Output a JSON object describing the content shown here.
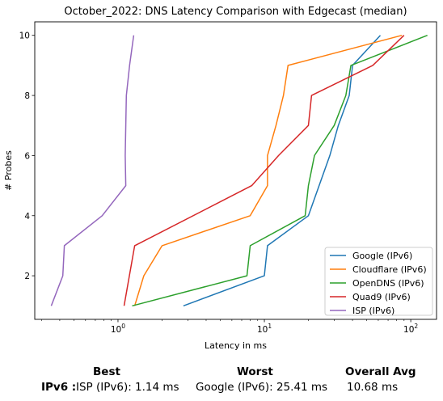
{
  "chart_data": {
    "type": "line",
    "title": "October_2022: DNS Latency Comparison with Edgecast (median)",
    "xlabel": "Latency in ms",
    "ylabel": "# Probes",
    "xscale": "log",
    "xlim": [
      0.27,
      150
    ],
    "ylim": [
      0.55,
      10.45
    ],
    "x_ticks": [
      {
        "value": 1,
        "base": "10",
        "exp": "0"
      },
      {
        "value": 10,
        "base": "10",
        "exp": "1"
      },
      {
        "value": 100,
        "base": "10",
        "exp": "2"
      }
    ],
    "y_ticks": [
      2,
      4,
      6,
      8,
      10
    ],
    "legend_position": "lower right",
    "series": [
      {
        "name": "Google (IPv6)",
        "color": "#1f77b4",
        "points": [
          [
            2.8,
            1
          ],
          [
            10,
            2
          ],
          [
            10.5,
            3
          ],
          [
            20,
            4
          ],
          [
            28,
            6
          ],
          [
            32,
            7
          ],
          [
            38,
            8
          ],
          [
            40,
            9
          ],
          [
            62,
            10
          ]
        ]
      },
      {
        "name": "Cloudflare (IPv6)",
        "color": "#ff7f0e",
        "points": [
          [
            1.3,
            1
          ],
          [
            1.5,
            2
          ],
          [
            2.0,
            3
          ],
          [
            8.0,
            4
          ],
          [
            10.5,
            5
          ],
          [
            10.5,
            6
          ],
          [
            12,
            7
          ],
          [
            13.5,
            8
          ],
          [
            14.5,
            9
          ],
          [
            87,
            10
          ]
        ]
      },
      {
        "name": "OpenDNS (IPv6)",
        "color": "#2ca02c",
        "points": [
          [
            1.25,
            1
          ],
          [
            7.6,
            2
          ],
          [
            8.0,
            3
          ],
          [
            19,
            4
          ],
          [
            20,
            5
          ],
          [
            22,
            6
          ],
          [
            30,
            7
          ],
          [
            36,
            8
          ],
          [
            39,
            9
          ],
          [
            130,
            10
          ]
        ]
      },
      {
        "name": "Quad9 (IPv6)",
        "color": "#d62728",
        "points": [
          [
            1.1,
            1
          ],
          [
            1.3,
            3
          ],
          [
            8.2,
            5
          ],
          [
            12.5,
            6
          ],
          [
            20,
            7
          ],
          [
            21,
            8
          ],
          [
            55,
            9
          ],
          [
            90,
            10
          ]
        ]
      },
      {
        "name": "ISP (IPv6)",
        "color": "#9467bd",
        "points": [
          [
            0.35,
            1
          ],
          [
            0.42,
            2
          ],
          [
            0.43,
            3
          ],
          [
            0.78,
            4
          ],
          [
            1.13,
            5
          ],
          [
            1.12,
            6
          ],
          [
            1.13,
            7
          ],
          [
            1.14,
            8
          ],
          [
            1.2,
            9
          ],
          [
            1.28,
            10
          ]
        ]
      }
    ]
  },
  "summary": {
    "best_header": "Best",
    "worst_header": "Worst",
    "avg_header": "Overall Avg",
    "row_label": "IPv6 :",
    "best_value": "ISP (IPv6): 1.14 ms",
    "worst_value": "Google (IPv6): 25.41 ms",
    "avg_value": "10.68 ms"
  }
}
